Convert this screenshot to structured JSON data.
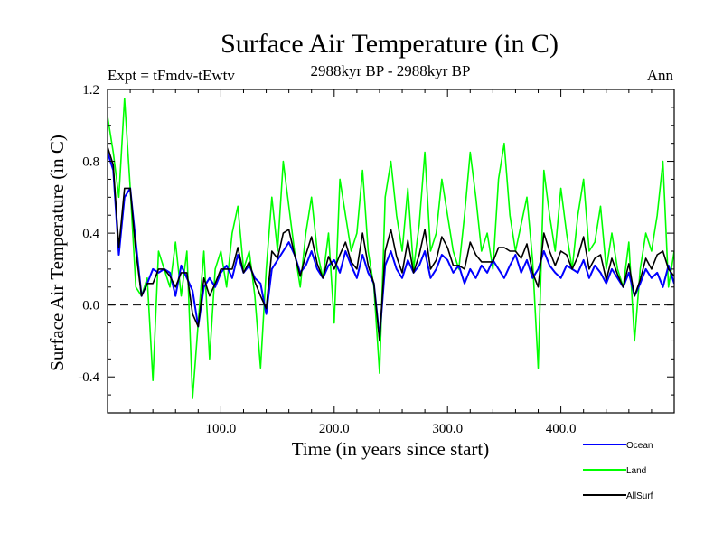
{
  "chart_data": {
    "type": "line",
    "title": "Surface Air Temperature (in C)",
    "subtitle": "2988kyr BP - 2988kyr BP",
    "left_label": "Expt = tFmdv-tEwtv",
    "right_label": "Ann",
    "xlabel": "Time (in years since start)",
    "ylabel": "Surface Air Temperature (in C)",
    "xlim": [
      0,
      500
    ],
    "ylim": [
      -0.6,
      1.2
    ],
    "x_ticks": [
      100,
      200,
      300,
      400
    ],
    "x_tick_labels": [
      "100.0",
      "200.0",
      "300.0",
      "400.0"
    ],
    "y_ticks": [
      -0.4,
      0.0,
      0.4,
      0.8,
      1.2
    ],
    "y_tick_labels": [
      "-0.4",
      "0.0",
      "0.4",
      "0.8",
      "1.2"
    ],
    "reference_line": 0.0,
    "legend_position": "bottom-right",
    "series": [
      {
        "name": "Ocean",
        "color": "#0000ff",
        "x": [
          0,
          5,
          10,
          15,
          20,
          25,
          30,
          35,
          40,
          45,
          50,
          55,
          60,
          65,
          70,
          75,
          80,
          85,
          90,
          95,
          100,
          105,
          110,
          115,
          120,
          125,
          130,
          135,
          140,
          145,
          150,
          155,
          160,
          165,
          170,
          175,
          180,
          185,
          190,
          195,
          200,
          205,
          210,
          215,
          220,
          225,
          230,
          235,
          240,
          245,
          250,
          255,
          260,
          265,
          270,
          275,
          280,
          285,
          290,
          295,
          300,
          305,
          310,
          315,
          320,
          325,
          330,
          335,
          340,
          345,
          350,
          355,
          360,
          365,
          370,
          375,
          380,
          385,
          390,
          395,
          400,
          405,
          410,
          415,
          420,
          425,
          430,
          435,
          440,
          445,
          450,
          455,
          460,
          465,
          470,
          475,
          480,
          485,
          490,
          495,
          500
        ],
        "values": [
          0.85,
          0.75,
          0.28,
          0.6,
          0.65,
          0.35,
          0.05,
          0.12,
          0.2,
          0.18,
          0.2,
          0.18,
          0.05,
          0.22,
          0.15,
          0.08,
          -0.12,
          0.1,
          0.15,
          0.1,
          0.18,
          0.22,
          0.15,
          0.28,
          0.18,
          0.22,
          0.15,
          0.12,
          -0.05,
          0.2,
          0.25,
          0.3,
          0.35,
          0.28,
          0.18,
          0.22,
          0.3,
          0.2,
          0.15,
          0.22,
          0.25,
          0.18,
          0.3,
          0.22,
          0.15,
          0.28,
          0.18,
          0.12,
          -0.18,
          0.22,
          0.3,
          0.2,
          0.15,
          0.25,
          0.18,
          0.22,
          0.3,
          0.15,
          0.2,
          0.28,
          0.25,
          0.18,
          0.22,
          0.12,
          0.2,
          0.15,
          0.22,
          0.18,
          0.25,
          0.2,
          0.15,
          0.22,
          0.28,
          0.18,
          0.25,
          0.15,
          0.2,
          0.3,
          0.22,
          0.18,
          0.15,
          0.22,
          0.2,
          0.18,
          0.25,
          0.15,
          0.22,
          0.18,
          0.12,
          0.2,
          0.15,
          0.1,
          0.18,
          0.05,
          0.12,
          0.2,
          0.15,
          0.18,
          0.1,
          0.22,
          0.12
        ]
      },
      {
        "name": "Land",
        "color": "#00ff00",
        "x": [
          0,
          5,
          10,
          15,
          20,
          25,
          30,
          35,
          40,
          45,
          50,
          55,
          60,
          65,
          70,
          75,
          80,
          85,
          90,
          95,
          100,
          105,
          110,
          115,
          120,
          125,
          130,
          135,
          140,
          145,
          150,
          155,
          160,
          165,
          170,
          175,
          180,
          185,
          190,
          195,
          200,
          205,
          210,
          215,
          220,
          225,
          230,
          235,
          240,
          245,
          250,
          255,
          260,
          265,
          270,
          275,
          280,
          285,
          290,
          295,
          300,
          305,
          310,
          315,
          320,
          325,
          330,
          335,
          340,
          345,
          350,
          355,
          360,
          365,
          370,
          375,
          380,
          385,
          390,
          395,
          400,
          405,
          410,
          415,
          420,
          425,
          430,
          435,
          440,
          445,
          450,
          455,
          460,
          465,
          470,
          475,
          480,
          485,
          490,
          495,
          500
        ],
        "values": [
          1.05,
          0.85,
          0.6,
          1.15,
          0.65,
          0.1,
          0.05,
          0.15,
          -0.42,
          0.3,
          0.2,
          0.1,
          0.35,
          0.05,
          0.3,
          -0.52,
          -0.1,
          0.3,
          -0.3,
          0.2,
          0.3,
          0.1,
          0.4,
          0.55,
          0.2,
          0.3,
          0.05,
          -0.35,
          0.2,
          0.6,
          0.3,
          0.8,
          0.55,
          0.3,
          0.1,
          0.4,
          0.6,
          0.3,
          0.15,
          0.4,
          -0.1,
          0.7,
          0.5,
          0.3,
          0.4,
          0.75,
          0.3,
          0.1,
          -0.38,
          0.6,
          0.8,
          0.5,
          0.3,
          0.65,
          0.2,
          0.45,
          0.85,
          0.3,
          0.4,
          0.7,
          0.5,
          0.3,
          0.2,
          0.5,
          0.85,
          0.6,
          0.3,
          0.4,
          0.2,
          0.7,
          0.9,
          0.5,
          0.3,
          0.45,
          0.6,
          0.25,
          -0.35,
          0.75,
          0.5,
          0.3,
          0.65,
          0.4,
          0.2,
          0.5,
          0.7,
          0.3,
          0.35,
          0.55,
          0.2,
          0.4,
          0.2,
          0.1,
          0.35,
          -0.2,
          0.2,
          0.4,
          0.3,
          0.5,
          0.8,
          0.1,
          0.3
        ]
      },
      {
        "name": "AllSurf",
        "color": "#000000",
        "x": [
          0,
          5,
          10,
          15,
          20,
          25,
          30,
          35,
          40,
          45,
          50,
          55,
          60,
          65,
          70,
          75,
          80,
          85,
          90,
          95,
          100,
          105,
          110,
          115,
          120,
          125,
          130,
          135,
          140,
          145,
          150,
          155,
          160,
          165,
          170,
          175,
          180,
          185,
          190,
          195,
          200,
          205,
          210,
          215,
          220,
          225,
          230,
          235,
          240,
          245,
          250,
          255,
          260,
          265,
          270,
          275,
          280,
          285,
          290,
          295,
          300,
          305,
          310,
          315,
          320,
          325,
          330,
          335,
          340,
          345,
          350,
          355,
          360,
          365,
          370,
          375,
          380,
          385,
          390,
          395,
          400,
          405,
          410,
          415,
          420,
          425,
          430,
          435,
          440,
          445,
          450,
          455,
          460,
          465,
          470,
          475,
          480,
          485,
          490,
          495,
          500
        ],
        "values": [
          0.88,
          0.78,
          0.32,
          0.65,
          0.65,
          0.3,
          0.05,
          0.12,
          0.12,
          0.2,
          0.2,
          0.16,
          0.1,
          0.18,
          0.18,
          -0.05,
          -0.12,
          0.15,
          0.05,
          0.12,
          0.2,
          0.2,
          0.2,
          0.32,
          0.18,
          0.24,
          0.13,
          0.05,
          -0.02,
          0.3,
          0.26,
          0.4,
          0.42,
          0.28,
          0.16,
          0.28,
          0.38,
          0.23,
          0.15,
          0.27,
          0.2,
          0.28,
          0.35,
          0.24,
          0.2,
          0.4,
          0.22,
          0.12,
          -0.2,
          0.3,
          0.42,
          0.27,
          0.18,
          0.36,
          0.18,
          0.28,
          0.42,
          0.2,
          0.25,
          0.38,
          0.32,
          0.22,
          0.22,
          0.2,
          0.35,
          0.28,
          0.24,
          0.24,
          0.24,
          0.32,
          0.32,
          0.3,
          0.3,
          0.26,
          0.34,
          0.18,
          0.1,
          0.4,
          0.3,
          0.22,
          0.3,
          0.28,
          0.2,
          0.27,
          0.38,
          0.2,
          0.26,
          0.28,
          0.14,
          0.26,
          0.17,
          0.1,
          0.23,
          0.05,
          0.14,
          0.26,
          0.2,
          0.28,
          0.3,
          0.2,
          0.16
        ]
      }
    ]
  }
}
